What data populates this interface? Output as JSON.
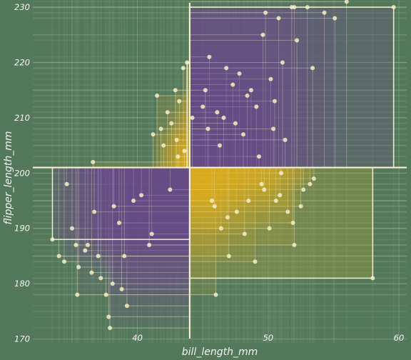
{
  "chart_data": {
    "type": "scatter",
    "title": "",
    "xlabel": "bill_length_mm",
    "ylabel": "flipper_length_mm",
    "xlim": [
      32,
      60.6
    ],
    "ylim": [
      169.3,
      231.3
    ],
    "x_ticks": [
      40,
      50,
      60
    ],
    "y_ticks": [
      170,
      180,
      190,
      200,
      210,
      220,
      230
    ],
    "grid": true,
    "legend": "none",
    "crosshair": {
      "x": 44,
      "y": 201
    },
    "colors": {
      "background": "#54795a",
      "grid": "#86a88a",
      "points": "#f4eec6",
      "lines": "#f6f1cf",
      "quadrant_purple": "#6c4a8c",
      "quadrant_gold": "#f2b41a",
      "quadrant_olive": "#a3a640"
    },
    "points": [
      {
        "x": 56.0,
        "y": 231
      },
      {
        "x": 59.6,
        "y": 230
      },
      {
        "x": 52.0,
        "y": 230
      },
      {
        "x": 53.0,
        "y": 230
      },
      {
        "x": 54.3,
        "y": 229
      },
      {
        "x": 55.1,
        "y": 228
      },
      {
        "x": 50.8,
        "y": 228
      },
      {
        "x": 51.8,
        "y": 230
      },
      {
        "x": 49.8,
        "y": 229
      },
      {
        "x": 49.6,
        "y": 225
      },
      {
        "x": 47.8,
        "y": 218
      },
      {
        "x": 48.7,
        "y": 215
      },
      {
        "x": 45.5,
        "y": 221
      },
      {
        "x": 46.8,
        "y": 219
      },
      {
        "x": 45.0,
        "y": 212
      },
      {
        "x": 47.3,
        "y": 216
      },
      {
        "x": 50.2,
        "y": 217
      },
      {
        "x": 53.4,
        "y": 219
      },
      {
        "x": 49.1,
        "y": 212
      },
      {
        "x": 50.5,
        "y": 213
      },
      {
        "x": 46.1,
        "y": 211
      },
      {
        "x": 48.4,
        "y": 214
      },
      {
        "x": 52.2,
        "y": 224
      },
      {
        "x": 51.1,
        "y": 220
      },
      {
        "x": 46.6,
        "y": 210
      },
      {
        "x": 45.2,
        "y": 215
      },
      {
        "x": 47.5,
        "y": 209
      },
      {
        "x": 49.3,
        "y": 203
      },
      {
        "x": 50.4,
        "y": 208
      },
      {
        "x": 48.1,
        "y": 207
      },
      {
        "x": 46.3,
        "y": 205
      },
      {
        "x": 45.4,
        "y": 208
      },
      {
        "x": 51.3,
        "y": 206
      },
      {
        "x": 44.2,
        "y": 210
      },
      {
        "x": 43.8,
        "y": 220
      },
      {
        "x": 43.5,
        "y": 219
      },
      {
        "x": 41.5,
        "y": 214
      },
      {
        "x": 42.9,
        "y": 215
      },
      {
        "x": 43.2,
        "y": 213
      },
      {
        "x": 42.3,
        "y": 211
      },
      {
        "x": 42.6,
        "y": 209
      },
      {
        "x": 41.8,
        "y": 208
      },
      {
        "x": 41.2,
        "y": 207
      },
      {
        "x": 43.0,
        "y": 206
      },
      {
        "x": 42.0,
        "y": 205
      },
      {
        "x": 43.6,
        "y": 204
      },
      {
        "x": 43.1,
        "y": 203
      },
      {
        "x": 33.5,
        "y": 188
      },
      {
        "x": 35.4,
        "y": 178
      },
      {
        "x": 37.9,
        "y": 172
      },
      {
        "x": 37.8,
        "y": 174
      },
      {
        "x": 39.2,
        "y": 176
      },
      {
        "x": 37.6,
        "y": 178
      },
      {
        "x": 36.6,
        "y": 202
      },
      {
        "x": 34.6,
        "y": 198
      },
      {
        "x": 34.4,
        "y": 184
      },
      {
        "x": 35.0,
        "y": 190
      },
      {
        "x": 35.3,
        "y": 187
      },
      {
        "x": 36.2,
        "y": 187
      },
      {
        "x": 36.0,
        "y": 186
      },
      {
        "x": 34.0,
        "y": 185
      },
      {
        "x": 35.5,
        "y": 183
      },
      {
        "x": 36.5,
        "y": 182
      },
      {
        "x": 37.2,
        "y": 181
      },
      {
        "x": 38.1,
        "y": 180
      },
      {
        "x": 38.8,
        "y": 179
      },
      {
        "x": 36.7,
        "y": 193
      },
      {
        "x": 38.6,
        "y": 191
      },
      {
        "x": 39.7,
        "y": 195
      },
      {
        "x": 40.3,
        "y": 196
      },
      {
        "x": 41.1,
        "y": 189
      },
      {
        "x": 37.0,
        "y": 185
      },
      {
        "x": 39.0,
        "y": 185
      },
      {
        "x": 42.5,
        "y": 197
      },
      {
        "x": 40.9,
        "y": 187
      },
      {
        "x": 38.2,
        "y": 194
      },
      {
        "x": 46.0,
        "y": 178
      },
      {
        "x": 58.0,
        "y": 181
      },
      {
        "x": 52.0,
        "y": 187
      },
      {
        "x": 53.2,
        "y": 198
      },
      {
        "x": 52.7,
        "y": 197
      },
      {
        "x": 51.5,
        "y": 193
      },
      {
        "x": 50.9,
        "y": 196
      },
      {
        "x": 52.5,
        "y": 194
      },
      {
        "x": 53.5,
        "y": 199
      },
      {
        "x": 51.0,
        "y": 200
      },
      {
        "x": 46.4,
        "y": 190
      },
      {
        "x": 49.0,
        "y": 184
      },
      {
        "x": 47.6,
        "y": 193
      },
      {
        "x": 48.5,
        "y": 195
      },
      {
        "x": 50.6,
        "y": 195
      },
      {
        "x": 49.5,
        "y": 198
      },
      {
        "x": 50.1,
        "y": 190
      },
      {
        "x": 46.9,
        "y": 192
      },
      {
        "x": 45.7,
        "y": 195
      },
      {
        "x": 47.0,
        "y": 185
      },
      {
        "x": 48.2,
        "y": 189
      },
      {
        "x": 49.7,
        "y": 197
      },
      {
        "x": 45.9,
        "y": 194
      },
      {
        "x": 51.9,
        "y": 191
      }
    ]
  }
}
